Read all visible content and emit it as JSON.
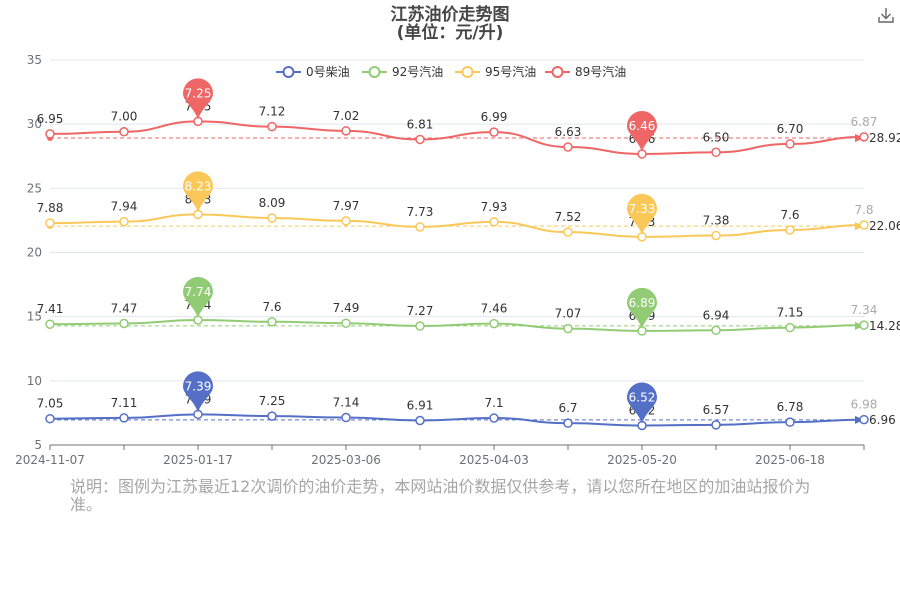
{
  "chart_data": {
    "type": "line",
    "title": "江苏油价走势图",
    "subtitle": "(单位：元/升)",
    "xlabel": "",
    "ylabel": "",
    "ylim": [
      5,
      35
    ],
    "y_ticks": [
      "5",
      "10",
      "15",
      "20",
      "25",
      "30",
      "35"
    ],
    "x_tick_labels": [
      "2024-11-07",
      "2025-01-17",
      "2025-03-06",
      "2025-04-03",
      "2025-05-20",
      "2025-06-18"
    ],
    "grid": "horizontal",
    "legend_position": "top",
    "series": [
      {
        "name": "0号柴油",
        "color": "#5470c6",
        "labels": [
          "7.05",
          "7.11",
          "7.39",
          "7.25",
          "7.14",
          "6.91",
          "7.1",
          "6.7",
          "6.52",
          "6.57",
          "6.78",
          "6.98"
        ],
        "plot_values": [
          7.05,
          7.11,
          7.39,
          7.25,
          7.14,
          6.91,
          7.1,
          6.7,
          6.52,
          6.57,
          6.78,
          6.98
        ],
        "max_label": "7.39",
        "min_label": "6.52",
        "average_label": "6.96"
      },
      {
        "name": "92号汽油",
        "color": "#91cc75",
        "labels": [
          "7.41",
          "7.47",
          "7.74",
          "7.6",
          "7.49",
          "7.27",
          "7.46",
          "7.07",
          "6.89",
          "6.94",
          "7.15",
          "7.34"
        ],
        "plot_values": [
          14.41,
          14.47,
          14.74,
          14.6,
          14.49,
          14.27,
          14.46,
          14.07,
          13.89,
          13.94,
          14.15,
          14.34
        ],
        "max_label": "7.74",
        "min_label": "6.89",
        "average_label": "14.28"
      },
      {
        "name": "95号汽油",
        "color": "#fac858",
        "labels": [
          "7.88",
          "7.94",
          "8.23",
          "8.09",
          "7.97",
          "7.73",
          "7.93",
          "7.52",
          "7.33",
          "7.38",
          "7.6",
          "7.8"
        ],
        "plot_values": [
          22.29,
          22.41,
          22.97,
          22.69,
          22.46,
          22.0,
          22.39,
          21.59,
          21.22,
          21.32,
          21.75,
          22.14
        ],
        "max_label": "8.23",
        "min_label": "7.33",
        "average_label": "22.06"
      },
      {
        "name": "89号汽油",
        "color": "#ee6666",
        "labels": [
          "6.95",
          "7.00",
          "7.25",
          "7.12",
          "7.02",
          "6.81",
          "6.99",
          "6.63",
          "6.46",
          "6.50",
          "6.70",
          "6.87"
        ],
        "plot_values": [
          29.24,
          29.41,
          30.22,
          29.81,
          29.48,
          28.81,
          29.38,
          28.22,
          27.68,
          27.81,
          28.46,
          29.01
        ],
        "max_label": "7.25",
        "min_label": "6.46",
        "average_label": "28.92"
      }
    ]
  },
  "note": "说明：图例为江苏最近12次调价的油价走势，本网站油价数据仅供参考，请以您所在地区的加油站报价为准。",
  "toolbar": {
    "download_icon": "download-icon"
  }
}
